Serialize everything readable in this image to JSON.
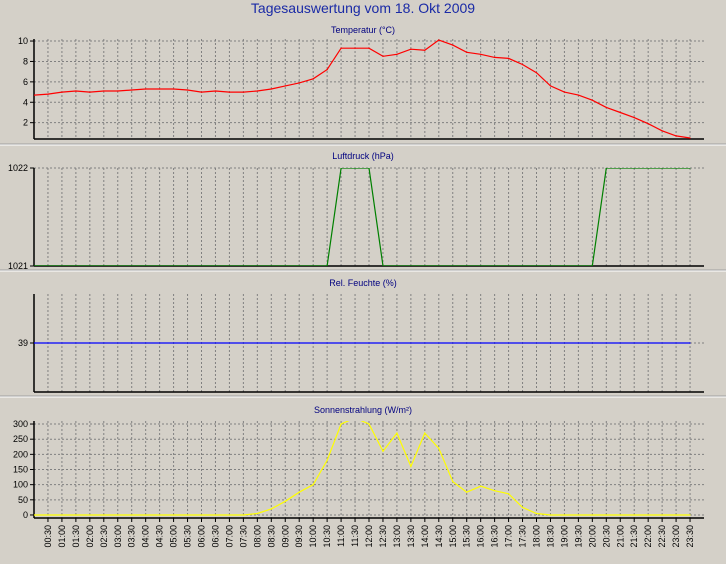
{
  "title": "Tagesauswertung vom 18. Okt 2009",
  "chart_data": [
    {
      "type": "line",
      "title": "Temperatur (°C)",
      "color": "#ff0000",
      "ylim": [
        0.4,
        10.2
      ],
      "yticks": [
        2,
        4,
        6,
        8,
        10
      ],
      "ytick_labels": [
        "2",
        "4",
        "6",
        "8",
        "10"
      ],
      "x": [
        "00:00",
        "00:30",
        "01:00",
        "01:30",
        "02:00",
        "02:30",
        "03:00",
        "03:30",
        "04:00",
        "04:30",
        "05:00",
        "05:30",
        "06:00",
        "06:30",
        "07:00",
        "07:30",
        "08:00",
        "08:30",
        "09:00",
        "09:30",
        "10:00",
        "10:30",
        "11:00",
        "11:30",
        "12:00",
        "12:30",
        "13:00",
        "13:30",
        "14:00",
        "14:30",
        "15:00",
        "15:30",
        "16:00",
        "16:30",
        "17:00",
        "17:30",
        "18:00",
        "18:30",
        "19:00",
        "19:30",
        "20:00",
        "20:30",
        "21:00",
        "21:30",
        "22:00",
        "22:30",
        "23:00",
        "23:30"
      ],
      "values": [
        4.7,
        4.8,
        5.0,
        5.1,
        5.0,
        5.1,
        5.1,
        5.2,
        5.3,
        5.3,
        5.3,
        5.2,
        5.0,
        5.1,
        5.0,
        5.0,
        5.1,
        5.3,
        5.6,
        5.9,
        6.3,
        7.2,
        9.3,
        9.3,
        9.3,
        8.5,
        8.7,
        9.2,
        9.1,
        10.1,
        9.6,
        8.9,
        8.7,
        8.4,
        8.3,
        7.7,
        6.9,
        5.6,
        5.0,
        4.7,
        4.2,
        3.5,
        3.0,
        2.5,
        1.9,
        1.2,
        0.7,
        0.5
      ]
    },
    {
      "type": "line",
      "title": "Luftdruck (hPa)",
      "color": "#008000",
      "ylim": [
        1021,
        1022
      ],
      "yticks": [
        1021,
        1022
      ],
      "ytick_labels": [
        "1021",
        "1022"
      ],
      "x": [
        "00:00",
        "00:30",
        "01:00",
        "01:30",
        "02:00",
        "02:30",
        "03:00",
        "03:30",
        "04:00",
        "04:30",
        "05:00",
        "05:30",
        "06:00",
        "06:30",
        "07:00",
        "07:30",
        "08:00",
        "08:30",
        "09:00",
        "09:30",
        "10:00",
        "10:30",
        "11:00",
        "11:30",
        "12:00",
        "12:30",
        "13:00",
        "13:30",
        "14:00",
        "14:30",
        "15:00",
        "15:30",
        "16:00",
        "16:30",
        "17:00",
        "17:30",
        "18:00",
        "18:30",
        "19:00",
        "19:30",
        "20:00",
        "20:30",
        "21:00",
        "21:30",
        "22:00",
        "22:30",
        "23:00",
        "23:30"
      ],
      "values": [
        1021,
        1021,
        1021,
        1021,
        1021,
        1021,
        1021,
        1021,
        1021,
        1021,
        1021,
        1021,
        1021,
        1021,
        1021,
        1021,
        1021,
        1021,
        1021,
        1021,
        1021,
        1021,
        1022,
        1022,
        1022,
        1021,
        1021,
        1021,
        1021,
        1021,
        1021,
        1021,
        1021,
        1021,
        1021,
        1021,
        1021,
        1021,
        1021,
        1021,
        1021,
        1022,
        1022,
        1022,
        1022,
        1022,
        1022,
        1022
      ]
    },
    {
      "type": "line",
      "title": "Rel. Feuchte (%)",
      "color": "#0000ff",
      "ylim": [
        38,
        40
      ],
      "yticks": [
        39
      ],
      "ytick_labels": [
        "39"
      ],
      "x": [
        "00:00",
        "23:30"
      ],
      "values": [
        39,
        39
      ]
    },
    {
      "type": "line",
      "title": "Sonnenstrahlung (W/m²)",
      "color": "#ffff00",
      "ylim": [
        -10,
        310
      ],
      "yticks": [
        0,
        50,
        100,
        150,
        200,
        250,
        300
      ],
      "ytick_labels": [
        "0",
        "50",
        "100",
        "150",
        "200",
        "250",
        "300"
      ],
      "x": [
        "00:00",
        "00:30",
        "01:00",
        "01:30",
        "02:00",
        "02:30",
        "03:00",
        "03:30",
        "04:00",
        "04:30",
        "05:00",
        "05:30",
        "06:00",
        "06:30",
        "07:00",
        "07:30",
        "08:00",
        "08:30",
        "09:00",
        "09:30",
        "10:00",
        "10:30",
        "11:00",
        "11:30",
        "12:00",
        "12:30",
        "13:00",
        "13:30",
        "14:00",
        "14:30",
        "15:00",
        "15:30",
        "16:00",
        "16:30",
        "17:00",
        "17:30",
        "18:00",
        "18:30",
        "19:00",
        "19:30",
        "20:00",
        "20:30",
        "21:00",
        "21:30",
        "22:00",
        "22:30",
        "23:00",
        "23:30"
      ],
      "values": [
        0,
        0,
        0,
        0,
        0,
        0,
        0,
        0,
        0,
        0,
        0,
        0,
        0,
        0,
        0,
        0,
        5,
        20,
        45,
        75,
        100,
        180,
        300,
        320,
        300,
        210,
        270,
        160,
        270,
        220,
        110,
        75,
        95,
        80,
        70,
        25,
        5,
        0,
        0,
        0,
        0,
        0,
        0,
        0,
        0,
        0,
        0,
        0
      ]
    }
  ],
  "x_tick_labels": [
    "00:30",
    "01:00",
    "01:30",
    "02:00",
    "02:30",
    "03:00",
    "03:30",
    "04:00",
    "04:30",
    "05:00",
    "05:30",
    "06:00",
    "06:30",
    "07:00",
    "07:30",
    "08:00",
    "08:30",
    "09:00",
    "09:30",
    "10:00",
    "10:30",
    "11:00",
    "11:30",
    "12:00",
    "12:30",
    "13:00",
    "13:30",
    "14:00",
    "14:30",
    "15:00",
    "15:30",
    "16:00",
    "16:30",
    "17:00",
    "17:30",
    "18:00",
    "18:30",
    "19:00",
    "19:30",
    "20:00",
    "20:30",
    "21:00",
    "21:30",
    "22:00",
    "22:30",
    "23:00",
    "23:30"
  ]
}
